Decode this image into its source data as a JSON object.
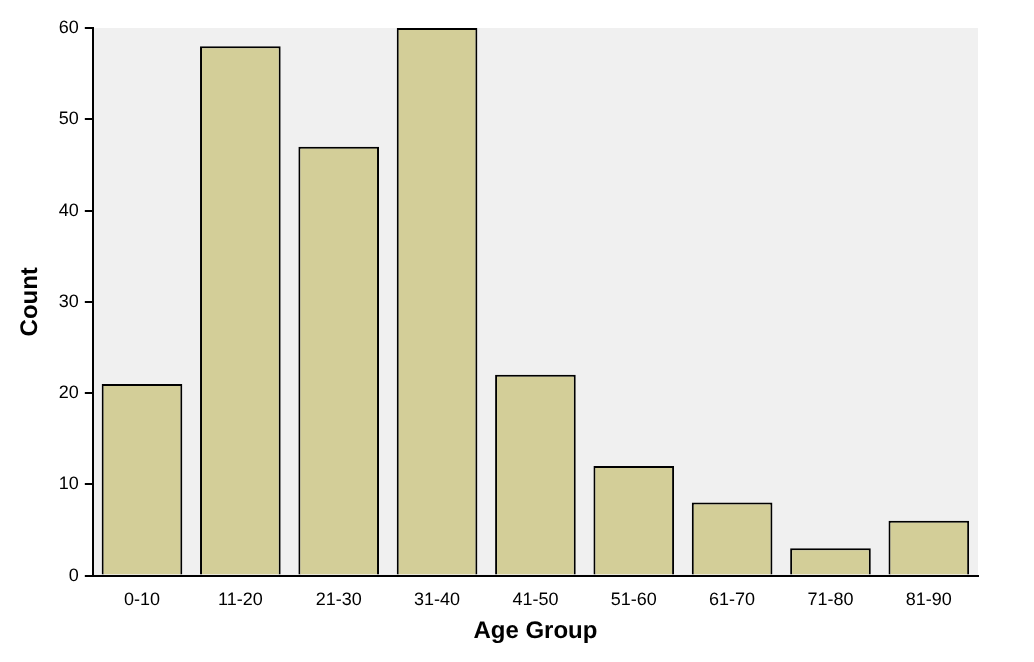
{
  "chart_data": {
    "type": "bar",
    "xlabel": "Age Group",
    "ylabel": "Count",
    "categories": [
      "0-10",
      "11-20",
      "21-30",
      "31-40",
      "41-50",
      "51-60",
      "61-70",
      "71-80",
      "81-90"
    ],
    "values": [
      21,
      58,
      47,
      60,
      22,
      12,
      8,
      3,
      6
    ],
    "color": "#d3ce98",
    "ylim": [
      0,
      60
    ],
    "yticks": [
      0,
      10,
      20,
      30,
      40,
      50,
      60
    ],
    "grid": false,
    "legend": false
  }
}
